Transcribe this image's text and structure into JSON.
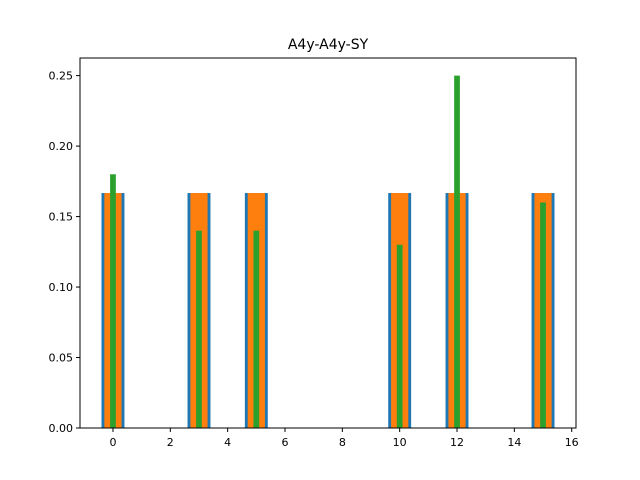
{
  "chart_data": {
    "type": "bar",
    "title": "A4y-A4y-SY",
    "xlabel": "",
    "ylabel": "",
    "xlim": [
      -1.15,
      16.15
    ],
    "ylim": [
      0,
      0.2625
    ],
    "xticks": [
      0,
      2,
      4,
      6,
      8,
      10,
      12,
      14,
      16
    ],
    "yticks": [
      0.0,
      0.05,
      0.1,
      0.15,
      0.2,
      0.25
    ],
    "ytick_labels": [
      "0.00",
      "0.05",
      "0.10",
      "0.15",
      "0.20",
      "0.25"
    ],
    "grid": false,
    "legend": "none",
    "x": [
      0,
      3,
      5,
      10,
      12,
      15
    ],
    "series": [
      {
        "color": "#1f77b4",
        "bar_width": 0.8,
        "values": [
          0.1667,
          0.1667,
          0.1667,
          0.1667,
          0.1667,
          0.1667
        ]
      },
      {
        "color": "#ff7f0e",
        "bar_width": 0.6,
        "values": [
          0.1667,
          0.1667,
          0.1667,
          0.1667,
          0.1667,
          0.1667
        ]
      },
      {
        "color": "#2ca02c",
        "bar_width": 0.2,
        "values": [
          0.18,
          0.14,
          0.14,
          0.13,
          0.25,
          0.16
        ]
      }
    ]
  }
}
